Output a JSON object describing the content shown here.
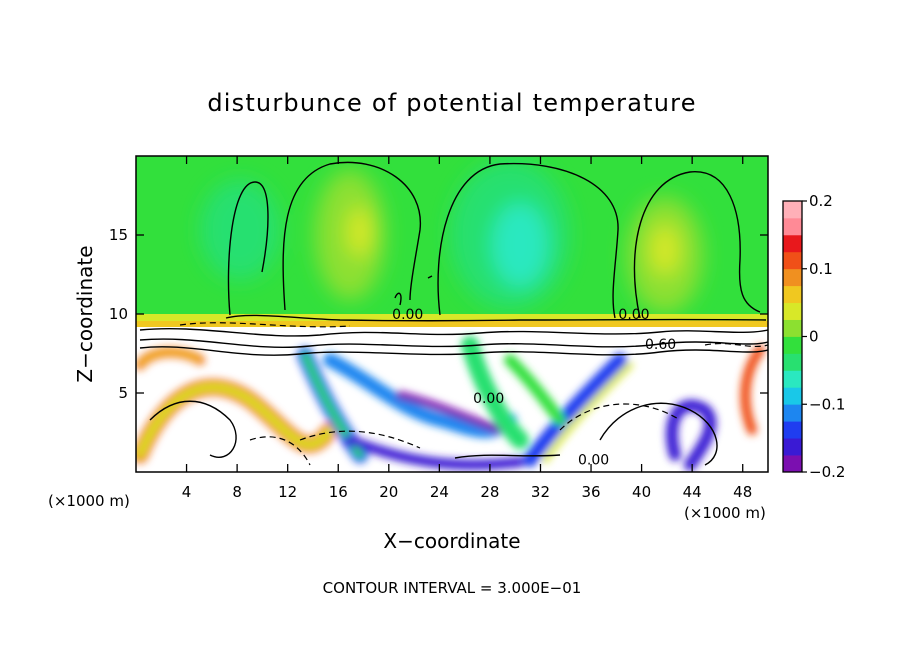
{
  "chart_data": {
    "type": "heatmap",
    "title": "disturbunce of potential temperature",
    "xlabel": "X−coordinate",
    "ylabel": "Z−coordinate",
    "xlim": [
      0,
      50
    ],
    "ylim": [
      0,
      20
    ],
    "x_ticks": [
      4,
      8,
      12,
      16,
      20,
      24,
      28,
      32,
      36,
      40,
      44,
      48
    ],
    "y_ticks": [
      5,
      10,
      15
    ],
    "x_unit": "(×1000 m)",
    "x_unit_right": "(×1000 m)",
    "footer": "CONTOUR INTERVAL = 3.000E−01",
    "colorbar": {
      "range": [
        -0.2,
        0.2
      ],
      "tick_labels": [
        "0.2",
        "0.1",
        "0",
        "−0.1",
        "−0.2"
      ],
      "tick_values": [
        0.2,
        0.1,
        0,
        -0.1,
        -0.2
      ],
      "colors": [
        "#7b0fb0",
        "#3a1ad4",
        "#1f3df0",
        "#1d86f0",
        "#19c8e8",
        "#2ae8c0",
        "#28e070",
        "#32e03c",
        "#8ce030",
        "#d8e828",
        "#f0c820",
        "#f09020",
        "#f05018",
        "#e8181c",
        "#ff8a96",
        "#ffb0b8"
      ]
    },
    "contour_labels": [
      {
        "text": "0.00",
        "x": 21.5,
        "z": 9.8
      },
      {
        "text": "0.00",
        "x": 39.4,
        "z": 9.8
      },
      {
        "text": "0.60",
        "x": 41.5,
        "z": 7.9
      },
      {
        "text": "0.00",
        "x": 36.2,
        "z": 0.6
      },
      {
        "text": "0.00",
        "x": 27.9,
        "z": 4.5
      }
    ]
  }
}
